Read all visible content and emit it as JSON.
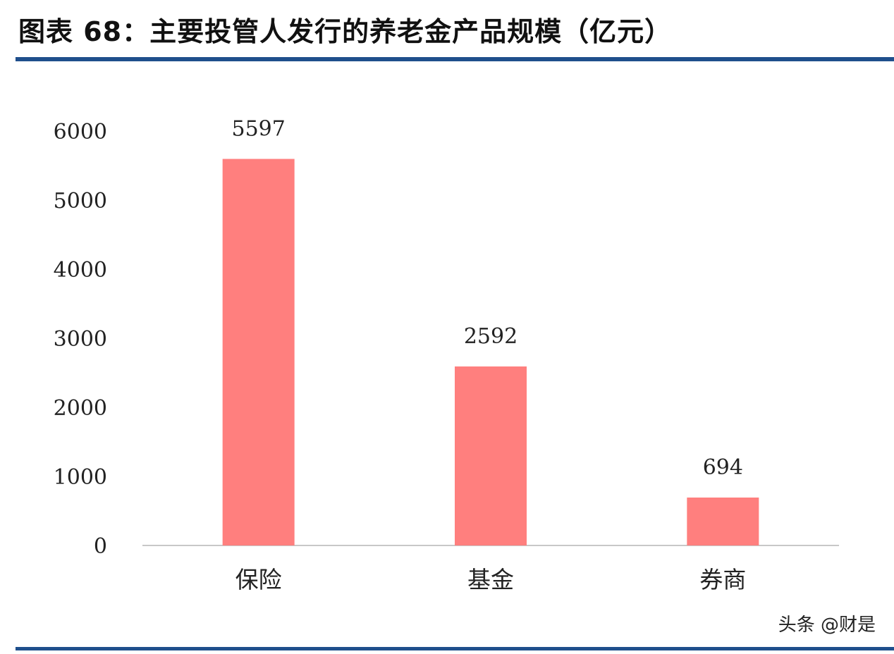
{
  "figure": {
    "title": "图表 68：主要投管人发行的养老金产品规模（亿元）",
    "watermark": "头条 @财是"
  },
  "colors": {
    "bar": "#ff7f7e",
    "rule": "#1f4f8c",
    "axis": "#c8c8c8"
  },
  "chart_data": {
    "type": "bar",
    "title": "图表 68：主要投管人发行的养老金产品规模（亿元）",
    "categories": [
      "保险",
      "基金",
      "券商"
    ],
    "values": [
      5597,
      2592,
      694
    ],
    "data_labels": [
      "5597",
      "2592",
      "694"
    ],
    "yticks": [
      0,
      1000,
      2000,
      3000,
      4000,
      5000,
      6000
    ],
    "ylim": [
      0,
      6000
    ],
    "grid": false,
    "legend": "none",
    "xlabel": "",
    "ylabel": ""
  }
}
